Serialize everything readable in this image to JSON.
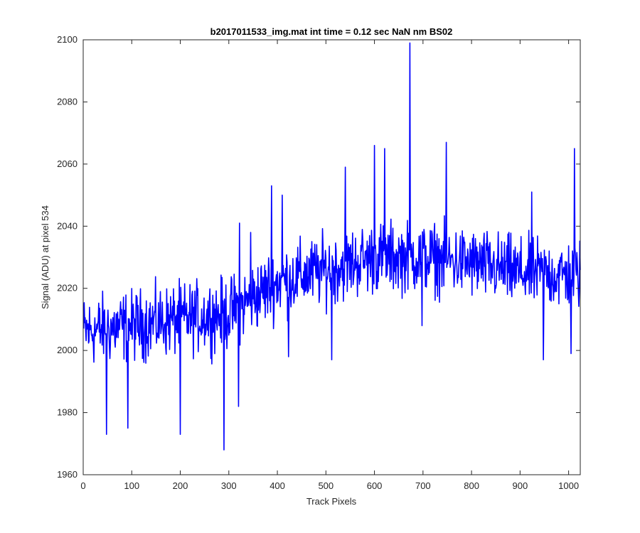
{
  "chart_data": {
    "type": "line",
    "title": "b2017011533_img.mat int time = 0.12 sec  NaN nm BS02",
    "xlabel": "Track Pixels",
    "ylabel": "Signal (ADU) at pixel 534",
    "xlim": [
      0,
      1024
    ],
    "ylim": [
      1960,
      2100
    ],
    "xticks": [
      0,
      100,
      200,
      300,
      400,
      500,
      600,
      700,
      800,
      900,
      1000
    ],
    "yticks": [
      1960,
      1980,
      2000,
      2020,
      2040,
      2060,
      2080,
      2100
    ],
    "grid": false,
    "series": [
      {
        "color": "#0000ff",
        "noise_amplitude": 10,
        "trend_x": [
          0,
          100,
          200,
          300,
          400,
          500,
          600,
          700,
          800,
          900,
          1024
        ],
        "trend_y": [
          2006,
          2008,
          2010,
          2012,
          2022,
          2026,
          2030,
          2030,
          2028,
          2025,
          2024
        ],
        "extremes": [
          {
            "x": 48,
            "y": 1973
          },
          {
            "x": 92,
            "y": 1975
          },
          {
            "x": 200,
            "y": 1973
          },
          {
            "x": 290,
            "y": 1968
          },
          {
            "x": 320,
            "y": 1982
          },
          {
            "x": 322,
            "y": 2041
          },
          {
            "x": 345,
            "y": 2038
          },
          {
            "x": 388,
            "y": 2053
          },
          {
            "x": 410,
            "y": 2050
          },
          {
            "x": 423,
            "y": 1998
          },
          {
            "x": 512,
            "y": 1997
          },
          {
            "x": 540,
            "y": 2059
          },
          {
            "x": 600,
            "y": 2066
          },
          {
            "x": 621,
            "y": 2065
          },
          {
            "x": 673,
            "y": 2099
          },
          {
            "x": 698,
            "y": 2008
          },
          {
            "x": 748,
            "y": 2067
          },
          {
            "x": 924,
            "y": 2051
          },
          {
            "x": 948,
            "y": 1997
          },
          {
            "x": 1005,
            "y": 1999
          },
          {
            "x": 1012,
            "y": 2065
          }
        ]
      }
    ]
  }
}
